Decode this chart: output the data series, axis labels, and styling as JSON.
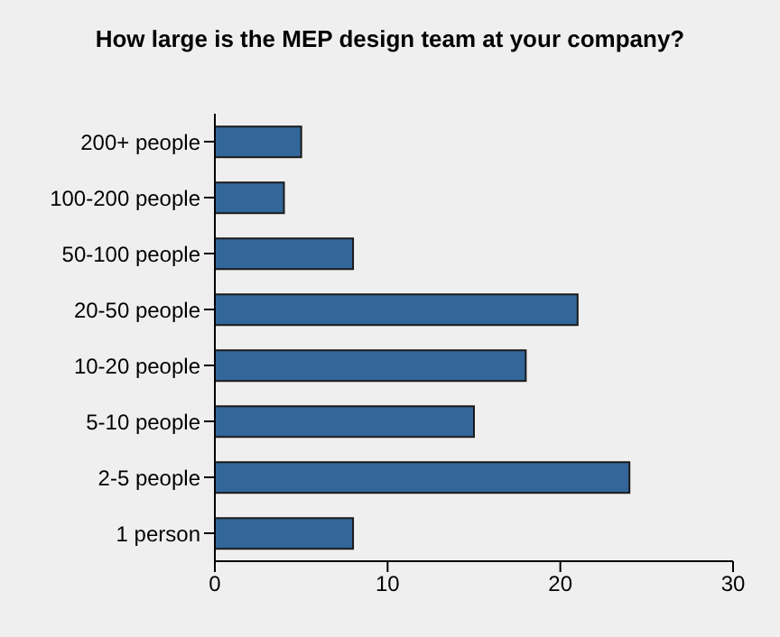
{
  "chart_data": {
    "type": "bar",
    "orientation": "horizontal",
    "title": "How large is the MEP design team at your company?",
    "categories": [
      "200+ people",
      "100-200  people",
      "50-100 people",
      "20-50 people",
      "10-20 people",
      "5-10 people",
      "2-5 people",
      "1 person"
    ],
    "values": [
      5,
      4,
      8,
      21,
      18,
      15,
      24,
      8
    ],
    "color": "#336699",
    "xlim": [
      0,
      30
    ],
    "xticks": [
      0,
      10,
      20,
      30
    ]
  }
}
